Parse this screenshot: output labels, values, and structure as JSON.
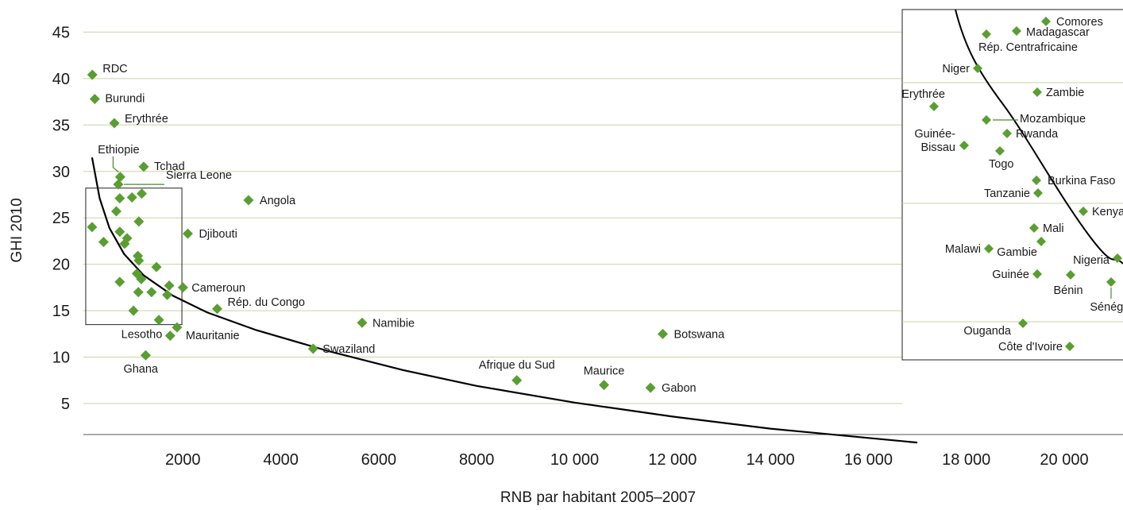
{
  "chart_data": {
    "type": "scatter",
    "xlabel": "RNB par habitant 2005–2007",
    "ylabel": "GHI 2010",
    "xlim": [
      0,
      21000
    ],
    "ylim": [
      0,
      46
    ],
    "xticks": [
      2000,
      4000,
      6000,
      8000,
      10000,
      12000,
      14000,
      16000,
      18000,
      20000
    ],
    "xtick_labels": [
      "2000",
      "4000",
      "6000",
      "8000",
      "10 000",
      "12 000",
      "14 000",
      "16 000",
      "18 000",
      "20 000"
    ],
    "yticks": [
      5,
      10,
      15,
      20,
      25,
      30,
      35,
      40,
      45
    ],
    "grid": "horizontal",
    "marker_color": "#5a9e32",
    "curve_color": "#000000",
    "trend_curve": [
      {
        "x": 145,
        "y": 31.5
      },
      {
        "x": 300,
        "y": 27.1
      },
      {
        "x": 500,
        "y": 23.9
      },
      {
        "x": 800,
        "y": 21.1
      },
      {
        "x": 1200,
        "y": 18.8
      },
      {
        "x": 1800,
        "y": 16.6
      },
      {
        "x": 2500,
        "y": 14.8
      },
      {
        "x": 3500,
        "y": 12.9
      },
      {
        "x": 5000,
        "y": 10.6
      },
      {
        "x": 6500,
        "y": 8.6
      },
      {
        "x": 8000,
        "y": 6.9
      },
      {
        "x": 10000,
        "y": 5.1
      },
      {
        "x": 12000,
        "y": 3.6
      },
      {
        "x": 14000,
        "y": 2.3
      },
      {
        "x": 16000,
        "y": 1.3
      },
      {
        "x": 17000,
        "y": 0.8
      }
    ],
    "zoom_box": {
      "x": [
        145,
        1850
      ],
      "y": [
        13.5,
        28.2
      ]
    },
    "points": [
      {
        "name": "RDC",
        "x": 150,
        "y": 40.4,
        "label": "RDC"
      },
      {
        "name": "Burundi",
        "x": 200,
        "y": 37.8,
        "label": "Burundi"
      },
      {
        "name": "Erythrée",
        "x": 600,
        "y": 35.2,
        "label": "Erythrée"
      },
      {
        "name": "Tchad",
        "x": 1200,
        "y": 30.5,
        "label": "Tchad"
      },
      {
        "name": "Ethiopie",
        "x": 720,
        "y": 29.4,
        "label": "Ethiopie"
      },
      {
        "name": "Sierra Leone",
        "x": 680,
        "y": 28.6,
        "label": "Sierra Leone"
      },
      {
        "name": "Angola",
        "x": 3340,
        "y": 26.9,
        "label": "Angola"
      },
      {
        "name": "Djibouti",
        "x": 2100,
        "y": 23.3,
        "label": "Djibouti"
      },
      {
        "name": "Cameroun",
        "x": 2000,
        "y": 17.5,
        "label": "Cameroun"
      },
      {
        "name": "Rép. du Congo",
        "x": 2700,
        "y": 15.2,
        "label": "Rép. du Congo"
      },
      {
        "name": "Namibie",
        "x": 5660,
        "y": 13.7,
        "label": "Namibie"
      },
      {
        "name": "Botswana",
        "x": 11800,
        "y": 12.5,
        "label": "Botswana"
      },
      {
        "name": "Mauritanie",
        "x": 1880,
        "y": 13.2,
        "label": "Mauritanie"
      },
      {
        "name": "Lesotho",
        "x": 1740,
        "y": 12.3,
        "label": "Lesotho"
      },
      {
        "name": "Swaziland",
        "x": 4660,
        "y": 10.9,
        "label": "Swaziland"
      },
      {
        "name": "Ghana",
        "x": 1240,
        "y": 10.2,
        "label": "Ghana"
      },
      {
        "name": "Afrique du Sud",
        "x": 8820,
        "y": 7.5,
        "label": "Afrique du Sud"
      },
      {
        "name": "Maurice",
        "x": 10600,
        "y": 7.0,
        "label": "Maurice"
      },
      {
        "name": "Gabon",
        "x": 11550,
        "y": 6.7,
        "label": "Gabon"
      },
      {
        "name": "z01",
        "x": 710,
        "y": 27.1
      },
      {
        "name": "z02",
        "x": 960,
        "y": 27.2
      },
      {
        "name": "z03",
        "x": 1160,
        "y": 27.6
      },
      {
        "name": "z04",
        "x": 640,
        "y": 25.7
      },
      {
        "name": "z05",
        "x": 1100,
        "y": 24.6
      },
      {
        "name": "z06",
        "x": 145,
        "y": 24.0
      },
      {
        "name": "z07",
        "x": 710,
        "y": 23.5
      },
      {
        "name": "z08",
        "x": 860,
        "y": 22.8
      },
      {
        "name": "z09",
        "x": 380,
        "y": 22.4
      },
      {
        "name": "z10",
        "x": 810,
        "y": 22.2
      },
      {
        "name": "z11",
        "x": 1080,
        "y": 20.9
      },
      {
        "name": "z12",
        "x": 1100,
        "y": 20.4
      },
      {
        "name": "z13",
        "x": 1460,
        "y": 19.7
      },
      {
        "name": "z14",
        "x": 1060,
        "y": 19.0
      },
      {
        "name": "z15",
        "x": 1150,
        "y": 18.4
      },
      {
        "name": "z16",
        "x": 710,
        "y": 18.1
      },
      {
        "name": "z17",
        "x": 1720,
        "y": 17.7
      },
      {
        "name": "z18",
        "x": 1090,
        "y": 17.0
      },
      {
        "name": "z19",
        "x": 1360,
        "y": 17.0
      },
      {
        "name": "z20",
        "x": 1680,
        "y": 16.7
      },
      {
        "name": "z21",
        "x": 990,
        "y": 15.0
      },
      {
        "name": "z22",
        "x": 1510,
        "y": 14.0
      }
    ],
    "inset": {
      "points": [
        {
          "name": "Comores",
          "label": "Comores"
        },
        {
          "name": "Madagascar",
          "label": "Madagascar"
        },
        {
          "name": "Rép. Centrafricaine",
          "label": "Rép. Centrafricaine"
        },
        {
          "name": "Niger",
          "label": "Niger"
        },
        {
          "name": "Zambie",
          "label": "Zambie"
        },
        {
          "name": "Erythrée",
          "label": "Erythrée"
        },
        {
          "name": "Mozambique",
          "label": "Mozambique"
        },
        {
          "name": "Rwanda",
          "label": "Rwanda"
        },
        {
          "name": "Guinée-Bissau",
          "label": "Guinée-\nBissau"
        },
        {
          "name": "Togo",
          "label": "Togo"
        },
        {
          "name": "Burkina Faso",
          "label": "Burkina Faso"
        },
        {
          "name": "Tanzanie",
          "label": "Tanzanie"
        },
        {
          "name": "Kenya",
          "label": "Kenya"
        },
        {
          "name": "Mali",
          "label": "Mali"
        },
        {
          "name": "Gambie",
          "label": "Gambie"
        },
        {
          "name": "Malawi",
          "label": "Malawi"
        },
        {
          "name": "Nigeria",
          "label": "Nigeria"
        },
        {
          "name": "Guinée",
          "label": "Guinée"
        },
        {
          "name": "Bénin",
          "label": "Bénin"
        },
        {
          "name": "Sénégal",
          "label": "Sénégal"
        },
        {
          "name": "Ouganda",
          "label": "Ouganda"
        },
        {
          "name": "Côte d'Ivoire",
          "label": "Côte d'Ivoire"
        }
      ]
    }
  }
}
